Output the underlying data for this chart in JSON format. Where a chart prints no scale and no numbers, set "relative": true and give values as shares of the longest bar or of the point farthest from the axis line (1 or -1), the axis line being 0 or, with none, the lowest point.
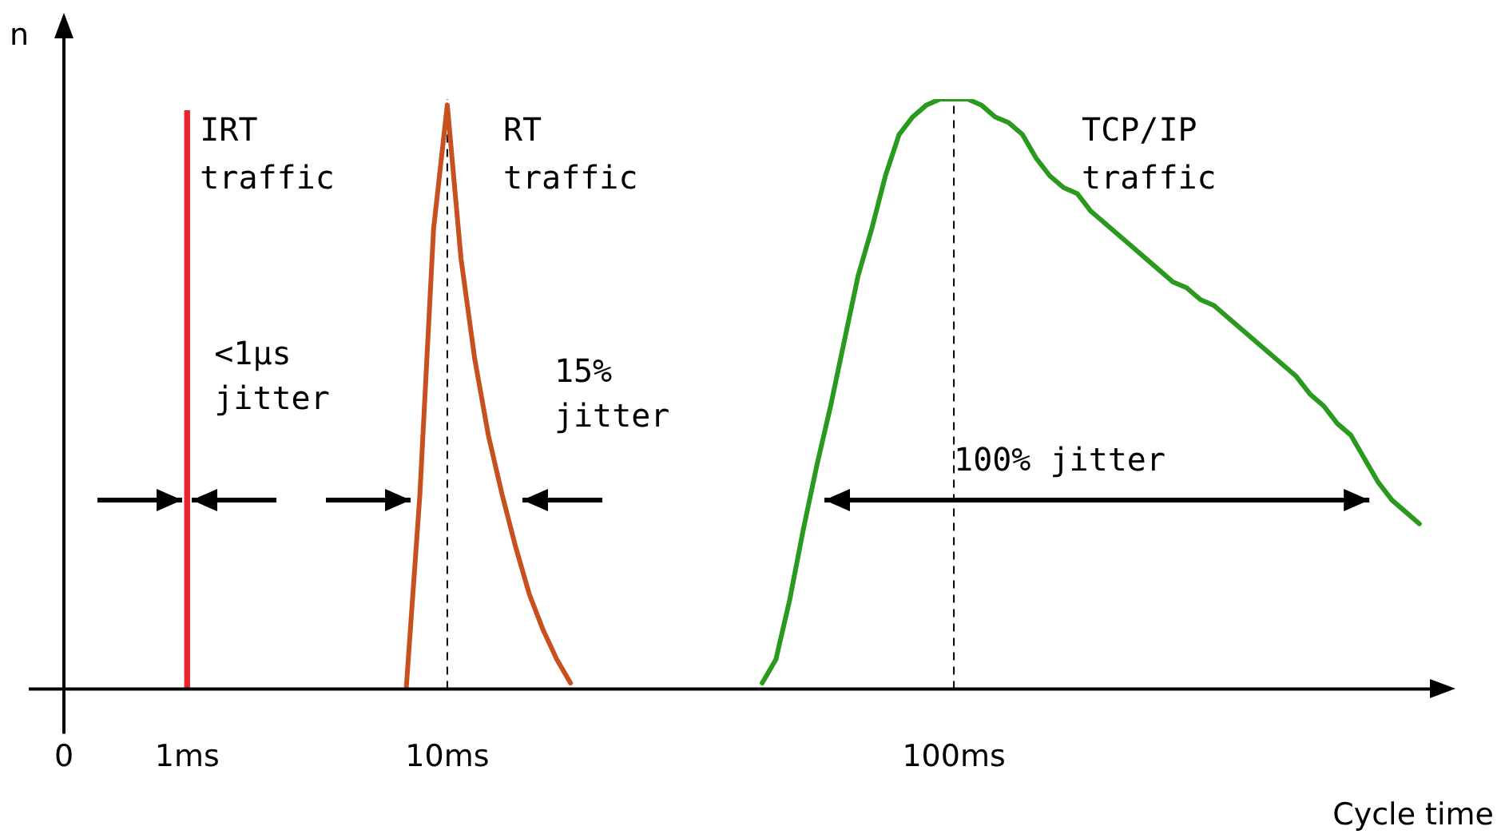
{
  "chart_data": {
    "type": "line",
    "relative": true,
    "xlabel": "Cycle time",
    "ylabel": "n",
    "legend": false,
    "grid": false,
    "marker": "none",
    "categories": [
      "0",
      null,
      null,
      null,
      null,
      null,
      null,
      null,
      null,
      "1ms",
      null,
      null,
      null,
      null,
      null,
      null,
      null,
      null,
      null,
      null,
      null,
      null,
      null,
      null,
      null,
      null,
      null,
      null,
      "10ms",
      null,
      null,
      null,
      null,
      null,
      null,
      null,
      null,
      null,
      null,
      null,
      null,
      null,
      null,
      null,
      null,
      null,
      null,
      null,
      null,
      null,
      null,
      null,
      null,
      null,
      null,
      null,
      null,
      null,
      null,
      null,
      null,
      null,
      null,
      null,
      null,
      "100ms",
      null,
      null,
      null,
      null,
      null,
      null,
      null,
      null,
      null,
      null,
      null,
      null,
      null,
      null,
      null,
      null,
      null,
      null,
      null,
      null,
      null,
      null,
      null,
      null,
      null,
      null,
      null,
      null,
      null,
      null,
      null,
      null,
      null,
      null,
      null
    ],
    "series": [
      {
        "name": "IRT traffic",
        "type": "bar",
        "color": "#e8242a",
        "values": [
          null,
          null,
          null,
          null,
          null,
          null,
          null,
          null,
          null,
          0.98,
          null,
          null,
          null,
          null,
          null,
          null,
          null,
          null,
          null,
          null,
          null,
          null,
          null,
          null,
          null,
          null,
          null,
          null,
          null,
          null,
          null,
          null,
          null,
          null,
          null,
          null,
          null,
          null,
          null,
          null,
          null,
          null,
          null,
          null,
          null,
          null,
          null,
          null,
          null,
          null,
          null,
          null,
          null,
          null,
          null,
          null,
          null,
          null,
          null,
          null,
          null,
          null,
          null,
          null,
          null,
          null,
          null,
          null,
          null,
          null,
          null,
          null,
          null,
          null,
          null,
          null,
          null,
          null,
          null,
          null,
          null,
          null,
          null,
          null,
          null,
          null,
          null,
          null,
          null,
          null,
          null,
          null,
          null,
          null,
          null,
          null,
          null,
          null,
          null,
          null,
          null
        ]
      },
      {
        "name": "RT traffic",
        "color": "#c8501e",
        "values": [
          null,
          null,
          null,
          null,
          null,
          null,
          null,
          null,
          null,
          null,
          null,
          null,
          null,
          null,
          null,
          null,
          null,
          null,
          null,
          null,
          null,
          null,
          null,
          null,
          null,
          0,
          0.33,
          0.78,
          0.99,
          0.73,
          0.56,
          0.43,
          0.33,
          0.24,
          0.16,
          0.1,
          0.05,
          0.01,
          null,
          null,
          null,
          null,
          null,
          null,
          null,
          null,
          null,
          null,
          null,
          null,
          null,
          null,
          null,
          null,
          null,
          null,
          null,
          null,
          null,
          null,
          null,
          null,
          null,
          null,
          null,
          null,
          null,
          null,
          null,
          null,
          null,
          null,
          null,
          null,
          null,
          null,
          null,
          null,
          null,
          null,
          null,
          null,
          null,
          null,
          null,
          null,
          null,
          null,
          null,
          null,
          null,
          null,
          null,
          null,
          null,
          null,
          null,
          null,
          null,
          null,
          null
        ]
      },
      {
        "name": "TCP/IP traffic",
        "color": "#2a9a1e",
        "values": [
          null,
          null,
          null,
          null,
          null,
          null,
          null,
          null,
          null,
          null,
          null,
          null,
          null,
          null,
          null,
          null,
          null,
          null,
          null,
          null,
          null,
          null,
          null,
          null,
          null,
          null,
          null,
          null,
          null,
          null,
          null,
          null,
          null,
          null,
          null,
          null,
          null,
          null,
          null,
          null,
          null,
          null,
          null,
          null,
          null,
          null,
          null,
          null,
          null,
          null,
          null,
          0.01,
          0.05,
          0.15,
          0.27,
          0.38,
          0.48,
          0.59,
          0.7,
          0.78,
          0.87,
          0.94,
          0.97,
          0.99,
          1,
          1,
          1,
          0.99,
          0.97,
          0.96,
          0.94,
          0.9,
          0.87,
          0.85,
          0.84,
          0.81,
          0.79,
          0.77,
          0.75,
          0.73,
          0.71,
          0.69,
          0.68,
          0.66,
          0.65,
          0.63,
          0.61,
          0.59,
          0.57,
          0.55,
          0.53,
          0.5,
          0.48,
          0.45,
          0.43,
          0.39,
          0.35,
          0.32,
          0.3,
          0.28,
          null
        ]
      }
    ],
    "ref_lines": [
      {
        "axis": "x",
        "value": "10ms",
        "color": "#000000",
        "line_style": "dashed"
      },
      {
        "axis": "x",
        "value": "100ms",
        "color": "#000000",
        "line_style": "dashed"
      }
    ],
    "annotations": [
      "<1µs jitter",
      "15% jitter",
      "100% jitter"
    ]
  }
}
